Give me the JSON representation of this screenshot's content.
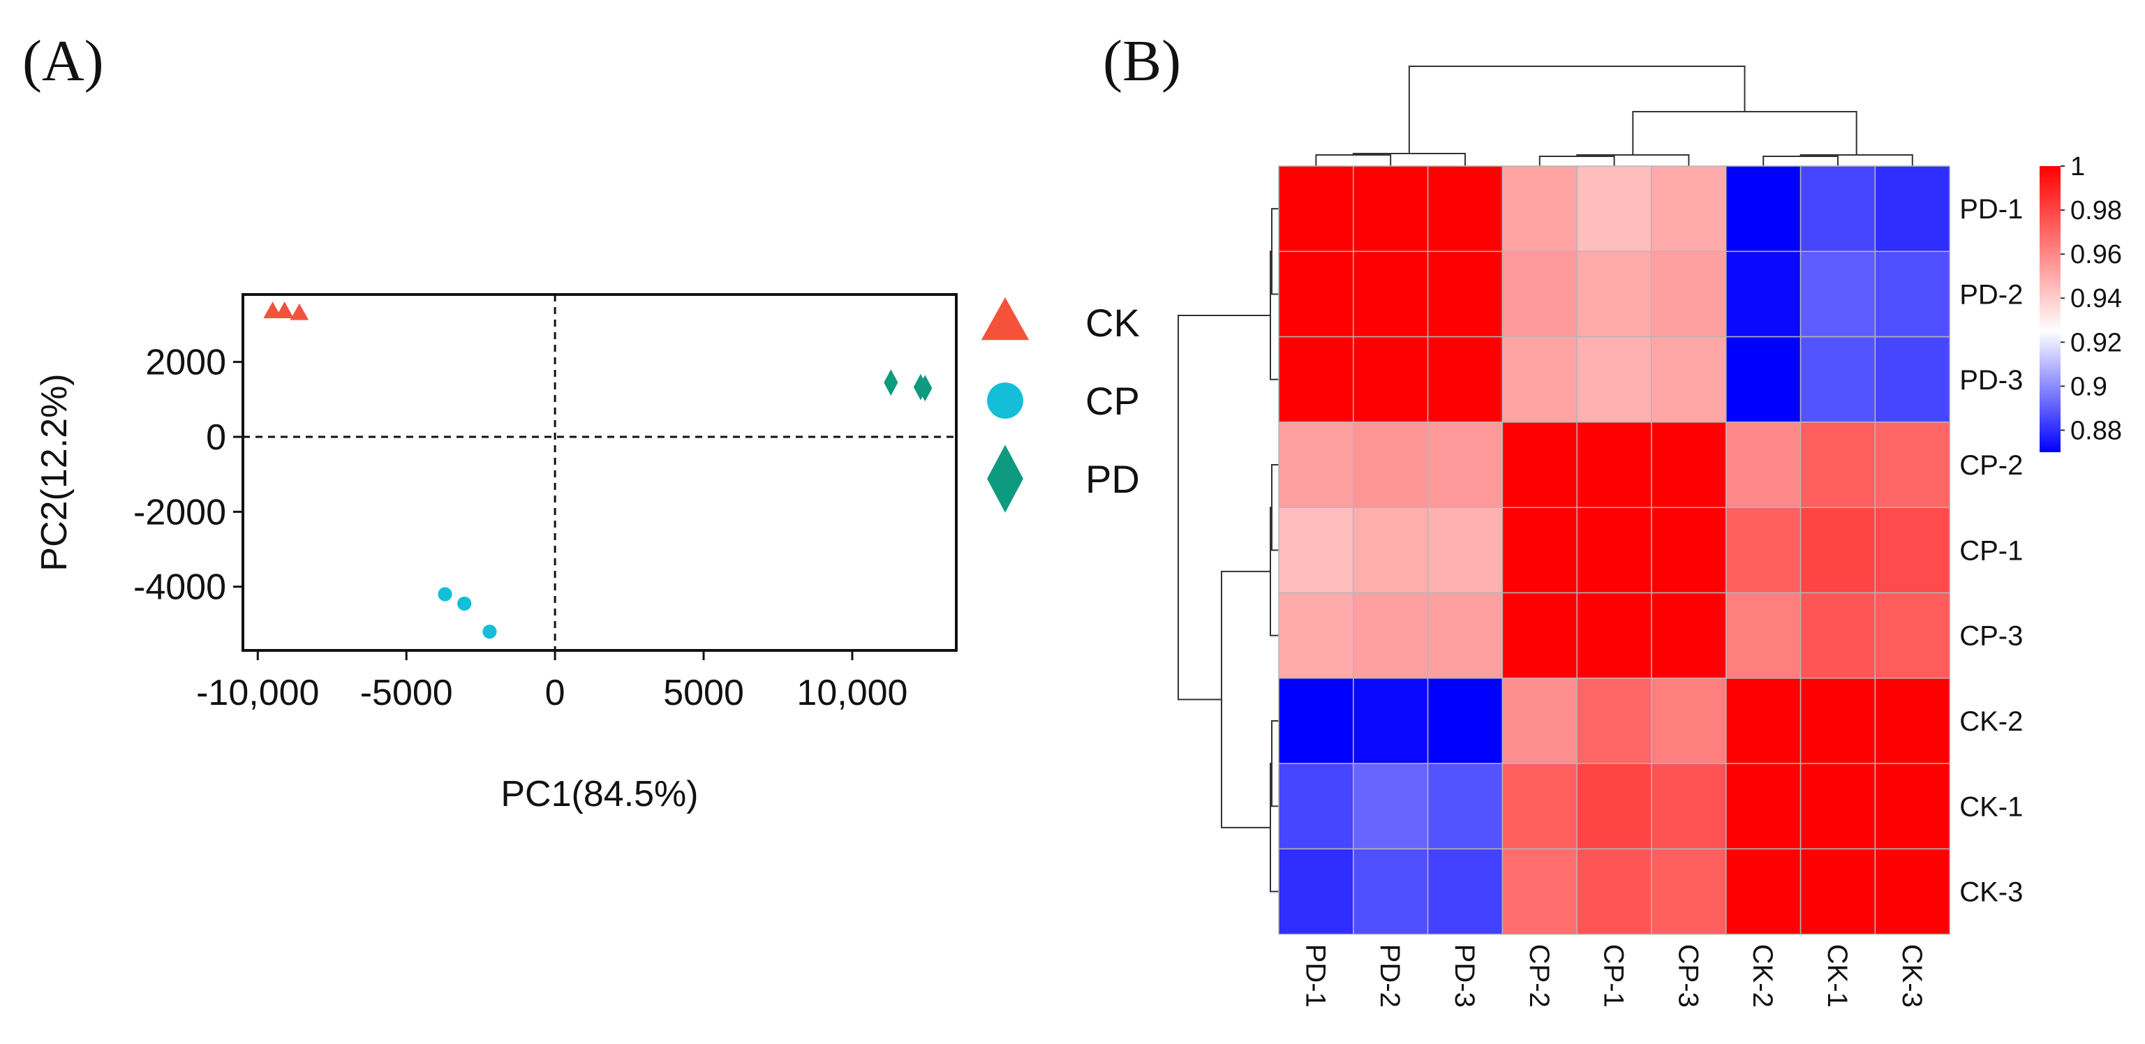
{
  "panel_labels": {
    "a": "(A)",
    "b": "(B)"
  },
  "chart_data": [
    {
      "type": "scatter",
      "panel": "(A)",
      "xlabel": "PC1(84.5%)",
      "ylabel": "PC2(12.2%)",
      "xlim": [
        -10500,
        13500
      ],
      "ylim": [
        -5700,
        3800
      ],
      "xticks": [
        -10000,
        -5000,
        0,
        5000,
        10000
      ],
      "xtick_labels": [
        "-10,000",
        "-5000",
        "0",
        "5000",
        "10,000"
      ],
      "yticks": [
        2000,
        0,
        -2000,
        -4000
      ],
      "ytick_labels": [
        "2000",
        "0",
        "-2000",
        "-4000"
      ],
      "reference_lines": {
        "x": 0,
        "y": 0,
        "style": "dashed"
      },
      "legend_position": "right-outside",
      "series": [
        {
          "name": "CK",
          "marker": "triangle",
          "color": "#f4523b",
          "points": [
            [
              -9500,
              3350
            ],
            [
              -9100,
              3350
            ],
            [
              -8600,
              3300
            ]
          ]
        },
        {
          "name": "CP",
          "marker": "circle",
          "color": "#14bed9",
          "points": [
            [
              -3700,
              -4200
            ],
            [
              -3050,
              -4450
            ],
            [
              -2200,
              -5200
            ]
          ]
        },
        {
          "name": "PD",
          "marker": "diamond",
          "color": "#0e9a7e",
          "points": [
            [
              11300,
              1450
            ],
            [
              12300,
              1330
            ],
            [
              12450,
              1300
            ]
          ]
        }
      ]
    },
    {
      "type": "heatmap",
      "panel": "(B)",
      "rows": [
        "PD-1",
        "PD-2",
        "PD-3",
        "CP-2",
        "CP-1",
        "CP-3",
        "CK-2",
        "CK-1",
        "CK-3"
      ],
      "columns": [
        "PD-1",
        "PD-2",
        "PD-3",
        "CP-2",
        "CP-1",
        "CP-3",
        "CK-2",
        "CK-1",
        "CK-3"
      ],
      "values": [
        [
          1.0,
          1.0,
          1.0,
          0.952,
          0.944,
          0.95,
          0.868,
          0.885,
          0.88
        ],
        [
          1.0,
          1.0,
          1.0,
          0.955,
          0.95,
          0.953,
          0.872,
          0.89,
          0.887
        ],
        [
          1.0,
          1.0,
          1.0,
          0.952,
          0.948,
          0.951,
          0.87,
          0.888,
          0.885
        ],
        [
          0.953,
          0.956,
          0.955,
          1.0,
          1.0,
          1.0,
          0.96,
          0.972,
          0.97
        ],
        [
          0.944,
          0.949,
          0.948,
          1.0,
          1.0,
          1.0,
          0.972,
          0.98,
          0.978
        ],
        [
          0.95,
          0.953,
          0.953,
          1.0,
          1.0,
          1.0,
          0.963,
          0.975,
          0.973
        ],
        [
          0.868,
          0.872,
          0.87,
          0.958,
          0.97,
          0.963,
          1.0,
          1.0,
          1.0
        ],
        [
          0.885,
          0.892,
          0.888,
          0.972,
          0.98,
          0.976,
          1.0,
          1.0,
          1.0
        ],
        [
          0.88,
          0.887,
          0.884,
          0.968,
          0.975,
          0.972,
          1.0,
          1.0,
          1.0
        ]
      ],
      "colorscale": {
        "min": 0.87,
        "mid": 0.925,
        "max": 1.0,
        "low_color": "#0000ff",
        "mid_color": "#ffffff",
        "high_color": "#ff0000"
      },
      "colorbar_ticks": [
        1,
        0.98,
        0.96,
        0.94,
        0.92,
        0.9,
        0.88
      ],
      "colorbar_tick_labels": [
        "1",
        "0.98",
        "0.96",
        "0.94",
        "0.92",
        "0.9",
        "0.88"
      ],
      "dendrograms": {
        "top": "columns clustered: PD | (CP | CK)",
        "left": "rows clustered: PD | (CP | CK)"
      }
    }
  ]
}
